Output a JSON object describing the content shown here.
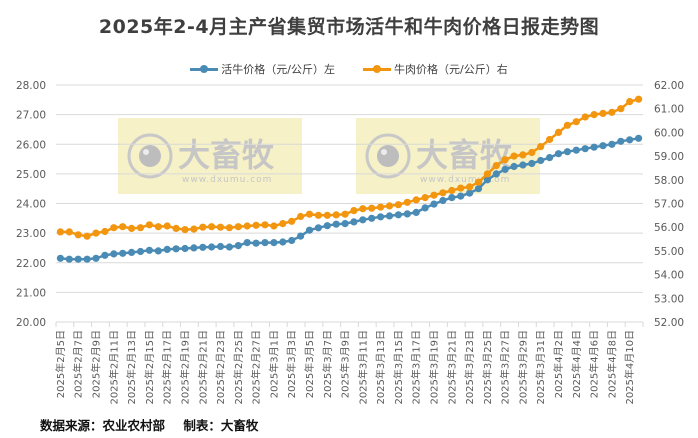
{
  "title": "2025年2-4月主产省集贸市场活牛和牛肉价格日报走势图",
  "footer": {
    "source": "数据来源：农业农村部",
    "maker": "制表：大畜牧"
  },
  "watermark": {
    "brand": "大畜牧",
    "url": "www.dxumu.com",
    "icon": "eye-logo-icon"
  },
  "colors": {
    "live_cattle": "#4a8bb5",
    "beef": "#f2950f",
    "grid": "#d9d9d9",
    "watermark_bg": "#f5efbd"
  },
  "chart_data": {
    "type": "line",
    "title": "2025年2-4月主产省集贸市场活牛和牛肉价格日报走势图",
    "xlabel": "",
    "ylabel_left": "活牛价格（元/公斤）",
    "ylabel_right": "牛肉价格（元/公斤）",
    "ylim_left": [
      20,
      28
    ],
    "ylim_right": [
      52,
      62
    ],
    "yticks_left": [
      "20.00",
      "21.00",
      "22.00",
      "23.00",
      "24.00",
      "25.00",
      "26.00",
      "27.00",
      "28.00"
    ],
    "yticks_right": [
      "52.00",
      "53.00",
      "54.00",
      "55.00",
      "56.00",
      "57.00",
      "58.00",
      "59.00",
      "60.00",
      "61.00",
      "62.00"
    ],
    "grid": true,
    "legend_position": "top",
    "x_tick_labels": [
      "2025年2月5日",
      "2025年2月7日",
      "2025年2月9日",
      "2025年2月11日",
      "2025年2月13日",
      "2025年2月15日",
      "2025年2月17日",
      "2025年2月19日",
      "2025年2月21日",
      "2025年2月23日",
      "2025年2月25日",
      "2025年2月27日",
      "2025年3月1日",
      "2025年3月3日",
      "2025年3月5日",
      "2025年3月7日",
      "2025年3月9日",
      "2025年3月11日",
      "2025年3月13日",
      "2025年3月15日",
      "2025年3月17日",
      "2025年3月19日",
      "2025年3月21日",
      "2025年3月23日",
      "2025年3月25日",
      "2025年3月27日",
      "2025年3月29日",
      "2025年3月31日",
      "2025年4月2日",
      "2025年4月4日",
      "2025年4月6日",
      "2025年4月8日",
      "2025年4月10日"
    ],
    "x": [
      "2/5",
      "2/6",
      "2/7",
      "2/8",
      "2/9",
      "2/10",
      "2/11",
      "2/12",
      "2/13",
      "2/14",
      "2/15",
      "2/16",
      "2/17",
      "2/18",
      "2/19",
      "2/20",
      "2/21",
      "2/22",
      "2/23",
      "2/24",
      "2/25",
      "2/26",
      "2/27",
      "2/28",
      "3/1",
      "3/2",
      "3/3",
      "3/4",
      "3/5",
      "3/6",
      "3/7",
      "3/8",
      "3/9",
      "3/10",
      "3/11",
      "3/12",
      "3/13",
      "3/14",
      "3/15",
      "3/16",
      "3/17",
      "3/18",
      "3/19",
      "3/20",
      "3/21",
      "3/22",
      "3/23",
      "3/24",
      "3/25",
      "3/26",
      "3/27",
      "3/28",
      "3/29",
      "3/30",
      "3/31",
      "4/1",
      "4/2",
      "4/3",
      "4/4",
      "4/5",
      "4/6",
      "4/7",
      "4/8",
      "4/9",
      "4/10",
      "4/11"
    ],
    "series": [
      {
        "name": "活牛价格（元/公斤）左",
        "axis": "left",
        "color": "#4a8bb5",
        "values": [
          22.15,
          22.12,
          22.12,
          22.12,
          22.15,
          22.25,
          22.3,
          22.32,
          22.35,
          22.38,
          22.42,
          22.4,
          22.45,
          22.47,
          22.48,
          22.5,
          22.52,
          22.53,
          22.55,
          22.53,
          22.58,
          22.68,
          22.66,
          22.68,
          22.68,
          22.7,
          22.75,
          22.9,
          23.1,
          23.18,
          23.25,
          23.3,
          23.32,
          23.38,
          23.45,
          23.5,
          23.55,
          23.58,
          23.62,
          23.65,
          23.7,
          23.85,
          23.98,
          24.1,
          24.2,
          24.25,
          24.35,
          24.5,
          24.8,
          25.0,
          25.15,
          25.25,
          25.3,
          25.35,
          25.45,
          25.55,
          25.68,
          25.75,
          25.8,
          25.85,
          25.9,
          25.95,
          26.0,
          26.1,
          26.15,
          26.2
        ]
      },
      {
        "name": "牛肉价格（元/公斤）右",
        "axis": "right",
        "color": "#f2950f",
        "values": [
          55.8,
          55.8,
          55.68,
          55.62,
          55.75,
          55.82,
          55.98,
          56.02,
          55.95,
          55.98,
          56.1,
          56.02,
          56.05,
          55.95,
          55.9,
          55.92,
          56.0,
          56.02,
          56.0,
          55.98,
          56.02,
          56.05,
          56.08,
          56.1,
          56.05,
          56.15,
          56.25,
          56.45,
          56.55,
          56.5,
          56.5,
          56.52,
          56.55,
          56.7,
          56.78,
          56.8,
          56.85,
          56.9,
          56.95,
          57.05,
          57.15,
          57.25,
          57.35,
          57.45,
          57.55,
          57.65,
          57.7,
          57.9,
          58.25,
          58.6,
          58.85,
          59.0,
          59.05,
          59.15,
          59.4,
          59.7,
          60.0,
          60.3,
          60.45,
          60.65,
          60.75,
          60.8,
          60.85,
          61.0,
          61.3,
          61.4
        ]
      }
    ]
  }
}
